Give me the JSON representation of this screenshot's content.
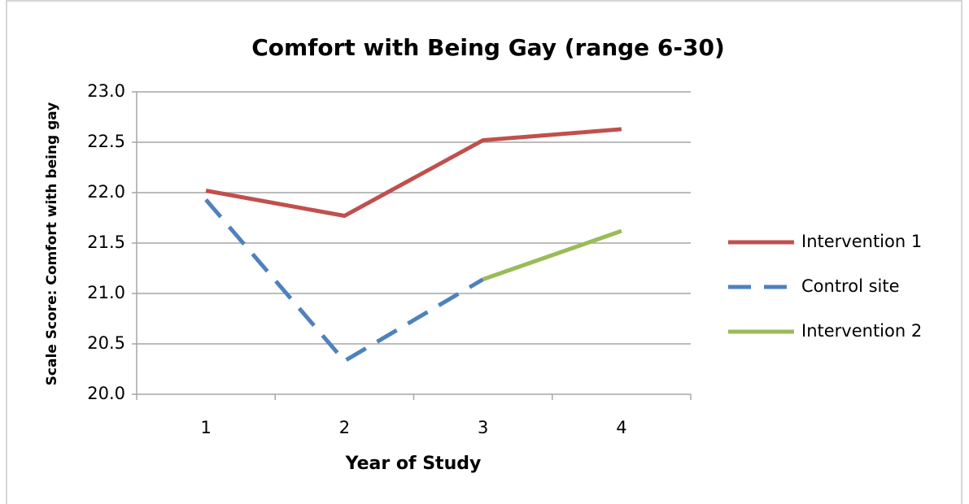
{
  "chart_data": {
    "type": "line",
    "title": "Comfort with Being Gay (range 6-30)",
    "xlabel": "Year of Study",
    "ylabel": "Scale Score: Comfort with being gay",
    "categories": [
      "1",
      "2",
      "3",
      "4"
    ],
    "series": [
      {
        "name": "Intervention 1",
        "color": "#c0504d",
        "dash": false,
        "values": [
          22.02,
          21.77,
          22.52,
          22.63
        ]
      },
      {
        "name": "Control site",
        "color": "#4f81bd",
        "dash": true,
        "values": [
          21.93,
          20.33,
          21.14,
          null
        ]
      },
      {
        "name": "Intervention 2",
        "color": "#9bbb59",
        "dash": false,
        "values": [
          null,
          null,
          21.14,
          21.62
        ]
      }
    ],
    "ylim": [
      20,
      23
    ],
    "yticks": [
      {
        "value": 20,
        "label": "20.0"
      },
      20.5,
      {
        "value": 21,
        "label": "21.0"
      },
      21.5,
      {
        "value": 22,
        "label": "22.0"
      },
      22.5,
      {
        "value": 23,
        "label": "23.0"
      }
    ],
    "grid": true,
    "legend": "right"
  }
}
